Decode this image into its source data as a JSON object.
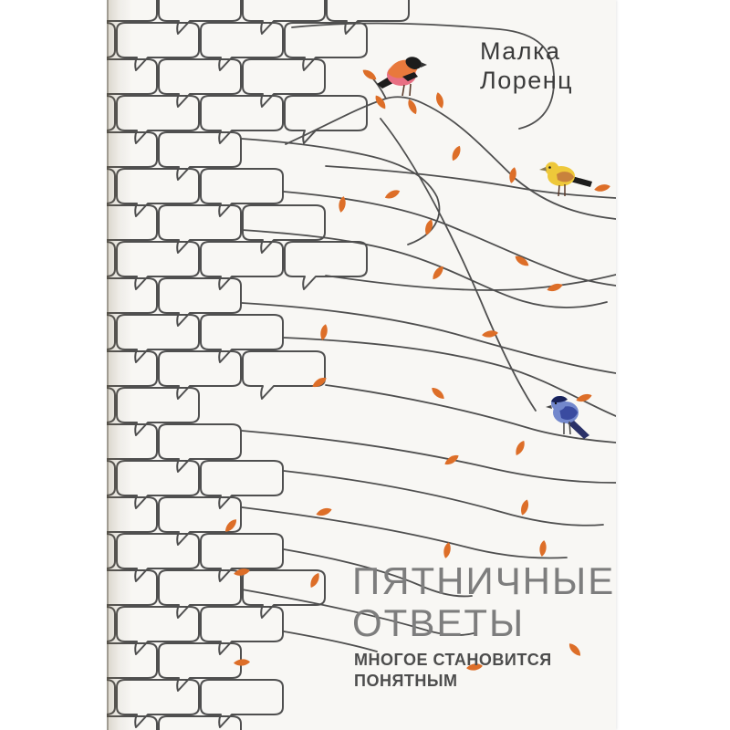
{
  "book_cover": {
    "author": {
      "line1": "Малка",
      "line2": "Лоренц"
    },
    "title": {
      "line1": "Пятничные",
      "line2": "ответы"
    },
    "subtitle": {
      "line1": "многое становится",
      "line2": "понятным"
    }
  },
  "illustration": {
    "birds": [
      {
        "name": "bullfinch",
        "colors": {
          "breast": "#e86f83",
          "back": "#e8793c",
          "cap": "#1c1c1c"
        }
      },
      {
        "name": "yellow-bird",
        "colors": {
          "body": "#eec83a",
          "wing": "#c8823c",
          "tail": "#1c1c1c"
        }
      },
      {
        "name": "blue-bird",
        "colors": {
          "body": "#7388cc",
          "wing": "#3a4ba0",
          "tail": "#2a3168",
          "crown": "#18225a"
        }
      }
    ],
    "colors": {
      "page_background": "#ffffff",
      "cover_background": "#f8f7f4",
      "line": "#4f4f4f",
      "leaf": "#dd6e28"
    }
  },
  "text_colors": {
    "author": "#3b3b3b",
    "title": "#7d7d7d",
    "subtitle": "#4d4d4d"
  }
}
